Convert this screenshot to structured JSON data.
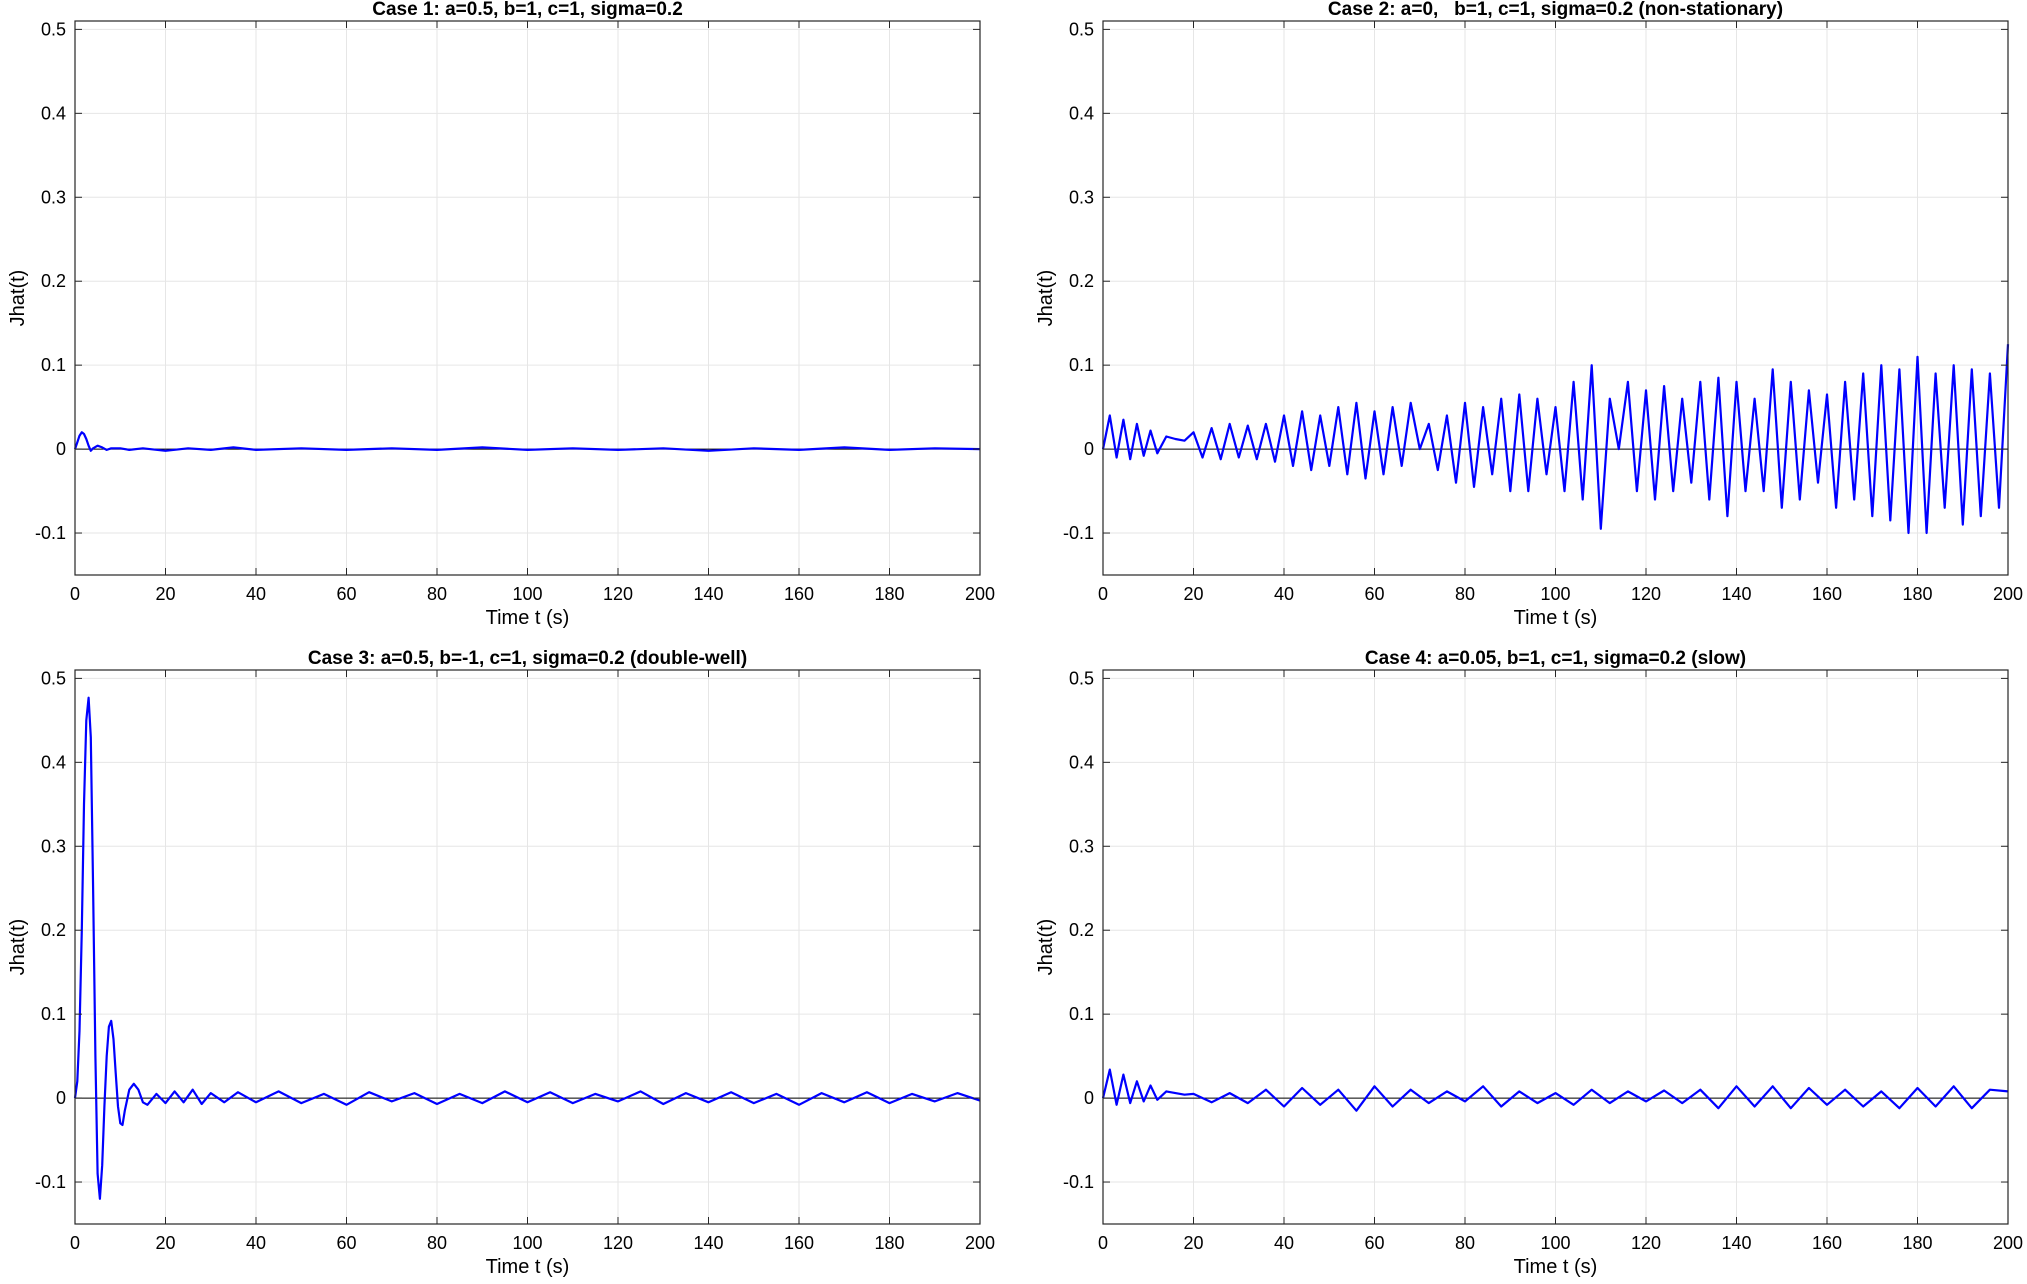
{
  "chart_data": [
    {
      "type": "line",
      "title": "Case 1: a=0.5, b=1, c=1, sigma=0.2",
      "xlabel": "Time t (s)",
      "ylabel": "Jhat(t)",
      "xlim": [
        0,
        200
      ],
      "ylim": [
        -0.15,
        0.51
      ],
      "xticks": [
        0,
        20,
        40,
        60,
        80,
        100,
        120,
        140,
        160,
        180,
        200
      ],
      "yticks": [
        -0.1,
        0,
        0.1,
        0.2,
        0.3,
        0.4,
        0.5
      ],
      "grid": true,
      "series": [
        {
          "color": "#0000ff",
          "x": [
            0,
            0.5,
            1,
            1.5,
            2,
            2.5,
            3,
            3.5,
            4,
            5,
            6,
            7,
            8,
            10,
            12,
            15,
            20,
            25,
            30,
            35,
            40,
            50,
            60,
            70,
            80,
            90,
            100,
            110,
            120,
            130,
            140,
            150,
            160,
            170,
            180,
            190,
            200
          ],
          "y": [
            0,
            0.008,
            0.016,
            0.02,
            0.018,
            0.012,
            0.004,
            -0.002,
            0.001,
            0.004,
            0.002,
            -0.001,
            0.001,
            0.001,
            -0.001,
            0.001,
            -0.002,
            0.001,
            -0.001,
            0.002,
            -0.001,
            0.001,
            -0.001,
            0.001,
            -0.001,
            0.002,
            -0.001,
            0.001,
            -0.001,
            0.001,
            -0.002,
            0.001,
            -0.001,
            0.002,
            -0.001,
            0.001,
            0.0
          ]
        }
      ]
    },
    {
      "type": "line",
      "title": "Case 2: a=0,   b=1, c=1, sigma=0.2 (non-stationary)",
      "xlabel": "Time t (s)",
      "ylabel": "Jhat(t)",
      "xlim": [
        0,
        200
      ],
      "ylim": [
        -0.15,
        0.51
      ],
      "xticks": [
        0,
        20,
        40,
        60,
        80,
        100,
        120,
        140,
        160,
        180,
        200
      ],
      "yticks": [
        -0.1,
        0,
        0.1,
        0.2,
        0.3,
        0.4,
        0.5
      ],
      "grid": true,
      "series": [
        {
          "color": "#0000ff",
          "x": [
            0,
            1.5,
            3,
            4.5,
            6,
            7.5,
            9,
            10.5,
            12,
            14,
            16,
            18,
            20,
            22,
            24,
            26,
            28,
            30,
            32,
            34,
            36,
            38,
            40,
            42,
            44,
            46,
            48,
            50,
            52,
            54,
            56,
            58,
            60,
            62,
            64,
            66,
            68,
            70,
            72,
            74,
            76,
            78,
            80,
            82,
            84,
            86,
            88,
            90,
            92,
            94,
            96,
            98,
            100,
            102,
            104,
            106,
            108,
            110,
            112,
            114,
            116,
            118,
            120,
            122,
            124,
            126,
            128,
            130,
            132,
            134,
            136,
            138,
            140,
            142,
            144,
            146,
            148,
            150,
            152,
            154,
            156,
            158,
            160,
            162,
            164,
            166,
            168,
            170,
            172,
            174,
            176,
            178,
            180,
            182,
            184,
            186,
            188,
            190,
            192,
            194,
            196,
            198,
            200
          ],
          "y": [
            0,
            0.04,
            -0.01,
            0.035,
            -0.012,
            0.03,
            -0.008,
            0.022,
            -0.005,
            0.015,
            0.012,
            0.01,
            0.02,
            -0.01,
            0.025,
            -0.012,
            0.03,
            -0.01,
            0.028,
            -0.012,
            0.03,
            -0.015,
            0.04,
            -0.02,
            0.045,
            -0.025,
            0.04,
            -0.02,
            0.05,
            -0.03,
            0.055,
            -0.035,
            0.045,
            -0.03,
            0.05,
            -0.02,
            0.055,
            0.0,
            0.03,
            -0.025,
            0.04,
            -0.04,
            0.055,
            -0.045,
            0.05,
            -0.03,
            0.06,
            -0.05,
            0.065,
            -0.05,
            0.06,
            -0.03,
            0.05,
            -0.05,
            0.08,
            -0.06,
            0.1,
            -0.095,
            0.06,
            0.0,
            0.08,
            -0.05,
            0.07,
            -0.06,
            0.075,
            -0.05,
            0.06,
            -0.04,
            0.08,
            -0.06,
            0.085,
            -0.08,
            0.08,
            -0.05,
            0.06,
            -0.05,
            0.095,
            -0.07,
            0.08,
            -0.06,
            0.07,
            -0.04,
            0.065,
            -0.07,
            0.08,
            -0.06,
            0.09,
            -0.08,
            0.1,
            -0.085,
            0.095,
            -0.1,
            0.11,
            -0.1,
            0.09,
            -0.07,
            0.1,
            -0.09,
            0.095,
            -0.08,
            0.09,
            -0.07,
            0.125
          ]
        }
      ]
    },
    {
      "type": "line",
      "title": "Case 3: a=0.5, b=-1, c=1, sigma=0.2 (double-well)",
      "xlabel": "Time t (s)",
      "ylabel": "Jhat(t)",
      "xlim": [
        0,
        200
      ],
      "ylim": [
        -0.15,
        0.51
      ],
      "xticks": [
        0,
        20,
        40,
        60,
        80,
        100,
        120,
        140,
        160,
        180,
        200
      ],
      "yticks": [
        -0.1,
        0,
        0.1,
        0.2,
        0.3,
        0.4,
        0.5
      ],
      "grid": true,
      "series": [
        {
          "color": "#0000ff",
          "x": [
            0,
            0.5,
            1,
            1.5,
            2,
            2.5,
            3,
            3.5,
            4,
            4.5,
            5,
            5.5,
            6,
            6.5,
            7,
            7.5,
            8,
            8.5,
            9,
            9.5,
            10,
            10.5,
            11,
            12,
            13,
            14,
            15,
            16,
            18,
            20,
            22,
            24,
            26,
            28,
            30,
            33,
            36,
            40,
            45,
            50,
            55,
            60,
            65,
            70,
            75,
            80,
            85,
            90,
            95,
            100,
            105,
            110,
            115,
            120,
            125,
            130,
            135,
            140,
            145,
            150,
            155,
            160,
            165,
            170,
            175,
            180,
            185,
            190,
            195,
            200
          ],
          "y": [
            0,
            0.02,
            0.08,
            0.2,
            0.35,
            0.45,
            0.477,
            0.43,
            0.25,
            0.05,
            -0.09,
            -0.12,
            -0.08,
            -0.01,
            0.05,
            0.085,
            0.092,
            0.07,
            0.03,
            -0.01,
            -0.03,
            -0.032,
            -0.015,
            0.01,
            0.017,
            0.01,
            -0.005,
            -0.008,
            0.005,
            -0.006,
            0.008,
            -0.005,
            0.01,
            -0.007,
            0.006,
            -0.005,
            0.007,
            -0.005,
            0.008,
            -0.006,
            0.005,
            -0.008,
            0.007,
            -0.004,
            0.006,
            -0.007,
            0.005,
            -0.006,
            0.008,
            -0.005,
            0.007,
            -0.006,
            0.005,
            -0.004,
            0.008,
            -0.007,
            0.006,
            -0.005,
            0.007,
            -0.006,
            0.005,
            -0.008,
            0.006,
            -0.005,
            0.007,
            -0.006,
            0.005,
            -0.004,
            0.006,
            -0.003
          ]
        }
      ]
    },
    {
      "type": "line",
      "title": "Case 4: a=0.05, b=1, c=1, sigma=0.2 (slow)",
      "xlabel": "Time t (s)",
      "ylabel": "Jhat(t)",
      "xlim": [
        0,
        200
      ],
      "ylim": [
        -0.15,
        0.51
      ],
      "xticks": [
        0,
        20,
        40,
        60,
        80,
        100,
        120,
        140,
        160,
        180,
        200
      ],
      "yticks": [
        -0.1,
        0,
        0.1,
        0.2,
        0.3,
        0.4,
        0.5
      ],
      "grid": true,
      "series": [
        {
          "color": "#0000ff",
          "x": [
            0,
            1.5,
            3,
            4.5,
            6,
            7.5,
            9,
            10.5,
            12,
            14,
            16,
            18,
            20,
            24,
            28,
            32,
            36,
            40,
            44,
            48,
            52,
            56,
            60,
            64,
            68,
            72,
            76,
            80,
            84,
            88,
            92,
            96,
            100,
            104,
            108,
            112,
            116,
            120,
            124,
            128,
            132,
            136,
            140,
            144,
            148,
            152,
            156,
            160,
            164,
            168,
            172,
            176,
            180,
            184,
            188,
            192,
            196,
            200
          ],
          "y": [
            0,
            0.034,
            -0.008,
            0.028,
            -0.006,
            0.02,
            -0.004,
            0.015,
            -0.002,
            0.008,
            0.006,
            0.004,
            0.005,
            -0.005,
            0.006,
            -0.006,
            0.01,
            -0.01,
            0.012,
            -0.008,
            0.01,
            -0.015,
            0.014,
            -0.01,
            0.01,
            -0.006,
            0.008,
            -0.004,
            0.014,
            -0.01,
            0.008,
            -0.006,
            0.006,
            -0.008,
            0.01,
            -0.006,
            0.008,
            -0.004,
            0.009,
            -0.006,
            0.01,
            -0.012,
            0.014,
            -0.01,
            0.014,
            -0.012,
            0.012,
            -0.008,
            0.01,
            -0.01,
            0.008,
            -0.012,
            0.012,
            -0.01,
            0.014,
            -0.012,
            0.01,
            0.008
          ]
        }
      ]
    }
  ]
}
